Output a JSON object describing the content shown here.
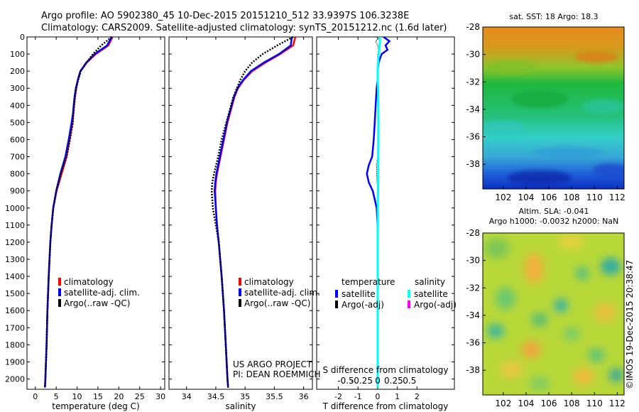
{
  "header": {
    "line1": "Argo profile: AO 5902380_45 10-Dec-2015 20151210_512 33.9397S 106.3238E",
    "line2": "Climatology: CARS2009. Satellite-adjusted climatology: synTS_20151212.nc (1.6d later)"
  },
  "credit": {
    "project": "US ARGO PROJECT",
    "pi": "PI: DEAN ROEMMICH",
    "imos": "©IMOS 19-Dec-2015 20:38:47"
  },
  "colors": {
    "climatology": "#ff0000",
    "satellite": "#0000ff",
    "argo": "#000000",
    "satellite_sal": "#00ffff",
    "argo_sal": "#ff00ff"
  },
  "chart_data": [
    {
      "type": "line",
      "xlabel": "temperature (deg C)",
      "xlim": [
        -2,
        31
      ],
      "ylim": [
        2060,
        0
      ],
      "xticks": [
        "0",
        "5",
        "10",
        "15",
        "20",
        "25",
        "30"
      ],
      "yticks": [
        "0",
        "100",
        "200",
        "300",
        "400",
        "500",
        "600",
        "700",
        "800",
        "900",
        "1000",
        "1100",
        "1200",
        "1300",
        "1400",
        "1500",
        "1600",
        "1700",
        "1800",
        "1900",
        "2000"
      ],
      "legend": [
        "climatology",
        "satellite-adj. clim.",
        "Argo(..raw -QC)"
      ],
      "depth": [
        0,
        50,
        100,
        150,
        200,
        250,
        300,
        350,
        400,
        450,
        500,
        600,
        700,
        800,
        900,
        1000,
        1100,
        1200,
        1400,
        1600,
        1800,
        2000,
        2050
      ],
      "series": [
        {
          "name": "climatology",
          "values": [
            18.5,
            17.5,
            14.5,
            12.3,
            10.8,
            10.2,
            9.8,
            9.5,
            9.3,
            9.1,
            8.9,
            8.2,
            7.5,
            6.3,
            5.1,
            4.3,
            3.9,
            3.6,
            3.2,
            2.9,
            2.7,
            2.4,
            2.3
          ]
        },
        {
          "name": "satellite-adj. clim.",
          "values": [
            18.3,
            17.2,
            14.2,
            12.2,
            10.8,
            10.2,
            9.7,
            9.4,
            9.2,
            9.0,
            8.7,
            8.0,
            7.2,
            6.0,
            5.0,
            4.3,
            3.9,
            3.6,
            3.2,
            2.9,
            2.7,
            2.4,
            2.3
          ]
        },
        {
          "name": "Argo(..raw -QC)",
          "values": [
            18.3,
            15.8,
            13.8,
            12.3,
            10.9,
            10.3,
            9.8,
            9.5,
            9.3,
            9.1,
            9.0,
            8.3,
            7.5,
            6.1,
            5.0,
            4.3,
            3.9,
            3.6,
            3.2,
            2.9,
            2.7,
            2.4,
            2.3
          ]
        }
      ]
    },
    {
      "type": "line",
      "xlabel": "salinity",
      "xlim": [
        33.7,
        36.15
      ],
      "ylim": [
        2060,
        0
      ],
      "xticks": [
        "34",
        "34.5",
        "35",
        "35.5",
        "36"
      ],
      "legend": [
        "climatology",
        "satellite-adj. clim.",
        "Argo(..raw -QC)"
      ],
      "depth": [
        0,
        50,
        100,
        150,
        200,
        250,
        300,
        350,
        400,
        500,
        600,
        700,
        800,
        850,
        900,
        1000,
        1100,
        1200,
        1400,
        1600,
        1800,
        2000,
        2050
      ],
      "series": [
        {
          "name": "climatology",
          "values": [
            35.86,
            35.82,
            35.6,
            35.35,
            35.12,
            34.98,
            34.88,
            34.82,
            34.78,
            34.7,
            34.64,
            34.58,
            34.52,
            34.5,
            34.49,
            34.5,
            34.52,
            34.55,
            34.6,
            34.64,
            34.67,
            34.7,
            34.71
          ]
        },
        {
          "name": "satellite-adj. clim.",
          "values": [
            35.8,
            35.78,
            35.58,
            35.32,
            35.1,
            34.97,
            34.87,
            34.81,
            34.77,
            34.69,
            34.63,
            34.57,
            34.51,
            34.49,
            34.48,
            34.5,
            34.52,
            34.55,
            34.6,
            34.64,
            34.67,
            34.7,
            34.71
          ]
        },
        {
          "name": "Argo(..raw -QC)",
          "values": [
            35.82,
            35.55,
            35.3,
            35.12,
            35.0,
            34.92,
            34.86,
            34.8,
            34.76,
            34.68,
            34.6,
            34.54,
            34.47,
            34.44,
            34.43,
            34.45,
            34.5,
            34.55,
            34.6,
            34.64,
            34.67,
            34.7,
            34.71
          ]
        }
      ]
    },
    {
      "type": "line",
      "xlabel": "T difference from climatology",
      "xlabel2": "S difference from climatology",
      "xlim": [
        -3.1,
        3.9
      ],
      "ylim": [
        2060,
        0
      ],
      "xticks": [
        "-2",
        "-1",
        "0",
        "1",
        "2"
      ],
      "xticks2": [
        "-0.5",
        "-0.25",
        "0",
        "0.25",
        "0.5"
      ],
      "legend_titles": [
        "temperature",
        "salinity"
      ],
      "legend": [
        "satellite",
        "Argo(-adj)",
        "satellite",
        "Argo(-adj)"
      ],
      "depth": [
        0,
        25,
        50,
        75,
        100,
        150,
        200,
        250,
        300,
        400,
        500,
        600,
        700,
        750,
        800,
        850,
        900,
        950,
        1000,
        1100,
        1200,
        1400,
        1600,
        1800,
        2000,
        2050
      ],
      "series": [
        {
          "name": "satellite",
          "values": [
            0.3,
            0.6,
            0.4,
            0.5,
            0.2,
            0.05,
            0.0,
            0.0,
            -0.05,
            -0.1,
            -0.15,
            -0.2,
            -0.28,
            -0.45,
            -0.55,
            -0.45,
            -0.25,
            -0.15,
            -0.05,
            0.0,
            0.0,
            0.0,
            0.0,
            0.0,
            0.0,
            0.0
          ]
        },
        {
          "name": "satellite (salinity)",
          "values": [
            0.1,
            0.12,
            0.1,
            0.08,
            0.05,
            0.02,
            0.0,
            0.0,
            0.02,
            0.03,
            0.04,
            0.04,
            0.03,
            0.03,
            0.03,
            0.02,
            0.02,
            0.01,
            0.01,
            0.01,
            0.0,
            0.0,
            0.0,
            0.0,
            0.0,
            0.0
          ]
        },
        {
          "name": "Argo(-adj)",
          "values": [
            0.1,
            -0.1,
            0.0,
            0.05,
            0.0,
            0.0,
            0.0,
            0.0,
            0.0,
            0.0,
            0.0,
            0.0,
            0.0,
            -0.05,
            -0.05,
            -0.03,
            0.0,
            0.0,
            0.0,
            0.0,
            0.0,
            0.0,
            0.0,
            0.0,
            0.0,
            0.0
          ]
        }
      ]
    },
    {
      "type": "heatmap",
      "title": "sat. SST: 18 Argo: 18.3",
      "xlim": [
        100.2,
        112.6
      ],
      "ylim": [
        -39.8,
        -28
      ],
      "xticks": [
        "102",
        "104",
        "106",
        "108",
        "110",
        "112"
      ],
      "yticks": [
        "-28",
        "-30",
        "-32",
        "-34",
        "-36",
        "-38"
      ]
    },
    {
      "type": "heatmap",
      "title": "Altim. SLA: -0.041",
      "subtitle": "Argo h1000: -0.0032 h2000: NaN",
      "xlim": [
        100.2,
        112.6
      ],
      "ylim": [
        -39.8,
        -28
      ],
      "xticks": [
        "102",
        "104",
        "106",
        "108",
        "110",
        "112"
      ],
      "yticks": [
        "-28",
        "-30",
        "-32",
        "-34",
        "-36",
        "-38"
      ]
    }
  ]
}
